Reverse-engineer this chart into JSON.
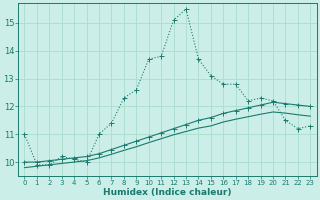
{
  "xlabel": "Humidex (Indice chaleur)",
  "bg_color": "#cceee8",
  "grid_color": "#aaddcc",
  "line_color": "#1a7a6e",
  "xlim": [
    -0.5,
    23.5
  ],
  "ylim": [
    9.5,
    15.7
  ],
  "xticks": [
    0,
    1,
    2,
    3,
    4,
    5,
    6,
    7,
    8,
    9,
    10,
    11,
    12,
    13,
    14,
    15,
    16,
    17,
    18,
    19,
    20,
    21,
    22,
    23
  ],
  "yticks": [
    10,
    11,
    12,
    13,
    14,
    15
  ],
  "line1_x": [
    0,
    1,
    2,
    3,
    4,
    5,
    6,
    7,
    8,
    9,
    10,
    11,
    12,
    13,
    14,
    15,
    16,
    17,
    18,
    19,
    20,
    21,
    22,
    23
  ],
  "line1_y": [
    11.0,
    9.9,
    9.9,
    10.2,
    10.1,
    10.0,
    11.0,
    11.4,
    12.3,
    12.6,
    13.7,
    13.8,
    15.1,
    15.5,
    13.7,
    13.1,
    12.8,
    12.8,
    12.2,
    12.3,
    12.2,
    11.5,
    11.2,
    11.3
  ],
  "line2_x": [
    0,
    1,
    2,
    3,
    4,
    5,
    6,
    7,
    8,
    9,
    10,
    11,
    12,
    13,
    14,
    15,
    16,
    17,
    18,
    19,
    20,
    21,
    22,
    23
  ],
  "line2_y": [
    10.0,
    10.0,
    10.05,
    10.1,
    10.15,
    10.2,
    10.3,
    10.45,
    10.6,
    10.75,
    10.9,
    11.05,
    11.2,
    11.35,
    11.5,
    11.6,
    11.75,
    11.85,
    11.95,
    12.05,
    12.15,
    12.1,
    12.05,
    12.0
  ],
  "line3_x": [
    0,
    1,
    2,
    3,
    4,
    5,
    6,
    7,
    8,
    9,
    10,
    11,
    12,
    13,
    14,
    15,
    16,
    17,
    18,
    19,
    20,
    21,
    22,
    23
  ],
  "line3_y": [
    9.8,
    9.85,
    9.9,
    9.95,
    10.0,
    10.05,
    10.15,
    10.28,
    10.42,
    10.55,
    10.7,
    10.84,
    10.98,
    11.1,
    11.22,
    11.3,
    11.44,
    11.54,
    11.63,
    11.72,
    11.8,
    11.76,
    11.7,
    11.65
  ]
}
